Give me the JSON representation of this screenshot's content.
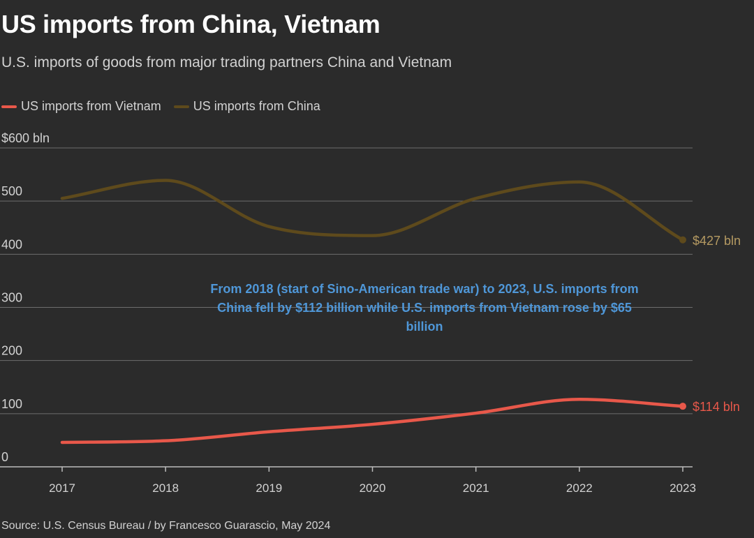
{
  "title": "US imports from China, Vietnam",
  "subtitle": "U.S. imports of goods from major trading partners China and Vietnam",
  "source": "Source: U.S. Census Bureau / by Francesco Guarascio, May 2024",
  "colors": {
    "background": "#2b2b2b",
    "vietnam": "#e8584a",
    "china": "#5e4a1c",
    "china_label": "#b59a62",
    "annotation": "#4f97d8",
    "grid": "#6e6e6e"
  },
  "legend": [
    {
      "label": "US imports from Vietnam",
      "series": "vietnam"
    },
    {
      "label": "US imports from China",
      "series": "china"
    }
  ],
  "chart_data": {
    "type": "line",
    "x": [
      2017,
      2018,
      2019,
      2020,
      2021,
      2022,
      2023
    ],
    "series": [
      {
        "name": "US imports from Vietnam",
        "key": "vietnam",
        "values": [
          46,
          49,
          66,
          80,
          101,
          127,
          114
        ],
        "end_label": "$114 bln"
      },
      {
        "name": "US imports from China",
        "key": "china",
        "values": [
          505,
          539,
          452,
          435,
          505,
          536,
          427
        ],
        "end_label": "$427 bln"
      }
    ],
    "y_ticks": [
      {
        "value": 600,
        "label": "$600 bln"
      },
      {
        "value": 500,
        "label": "500"
      },
      {
        "value": 400,
        "label": "400"
      },
      {
        "value": 300,
        "label": "300"
      },
      {
        "value": 200,
        "label": "200"
      },
      {
        "value": 100,
        "label": "100"
      },
      {
        "value": 0,
        "label": "0"
      }
    ],
    "x_tick_labels": [
      "2017",
      "2018",
      "2019",
      "2020",
      "2021",
      "2022",
      "2023"
    ],
    "ylim": [
      0,
      600
    ],
    "grid": true,
    "legend_placement": "top-left",
    "annotation": {
      "lines": [
        "From 2018 (start of Sino-American trade war) to 2023, U.S. imports from",
        "China fell by $112 billion while U.S. imports from Vietnam rose by $65",
        "billion"
      ]
    }
  }
}
